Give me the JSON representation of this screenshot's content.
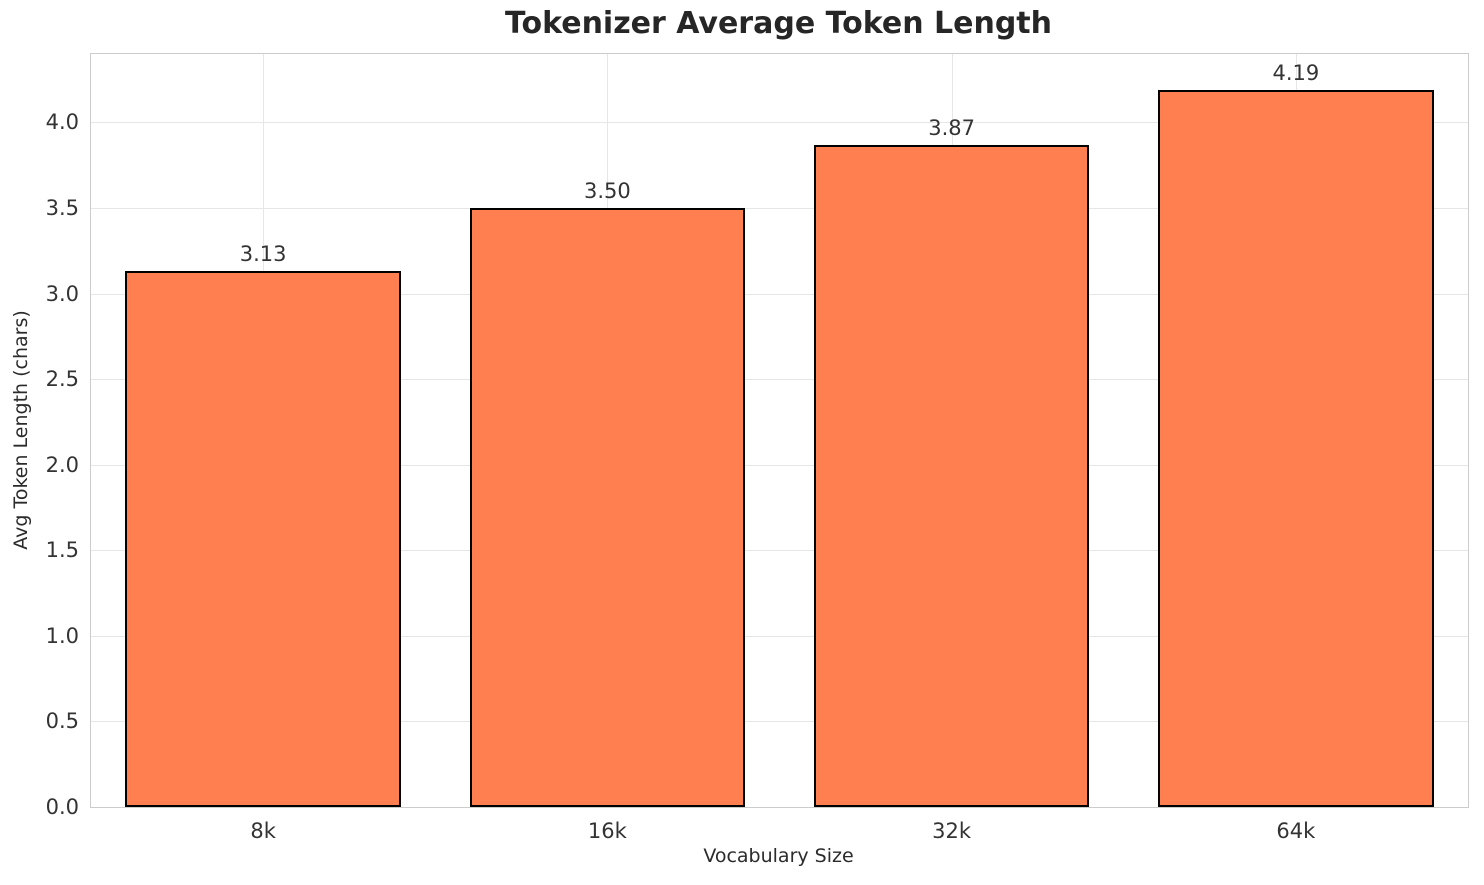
{
  "chart_data": {
    "type": "bar",
    "title": "Tokenizer Average Token Length",
    "xlabel": "Vocabulary Size",
    "ylabel": "Avg Token Length (chars)",
    "categories": [
      "8k",
      "16k",
      "32k",
      "64k"
    ],
    "values": [
      3.13,
      3.5,
      3.87,
      4.19
    ],
    "value_labels": [
      "3.13",
      "3.50",
      "3.87",
      "4.19"
    ],
    "ylim": [
      0,
      4.4
    ],
    "yticks": [
      0,
      0.5,
      1.0,
      1.5,
      2.0,
      2.5,
      3.0,
      3.5,
      4.0
    ],
    "ytick_labels": [
      "0.0",
      "0.5",
      "1.0",
      "1.5",
      "2.0",
      "2.5",
      "3.0",
      "3.5",
      "4.0"
    ],
    "grid": true,
    "legend_position": "none",
    "bar_width_fraction": 0.8,
    "colors": {
      "bar_fill": "#FF7F50",
      "bar_edge": "#000000",
      "grid": "#e6e6e6",
      "spine": "#cccccc",
      "title_text": "#262626",
      "tick_text": "#333333"
    }
  }
}
